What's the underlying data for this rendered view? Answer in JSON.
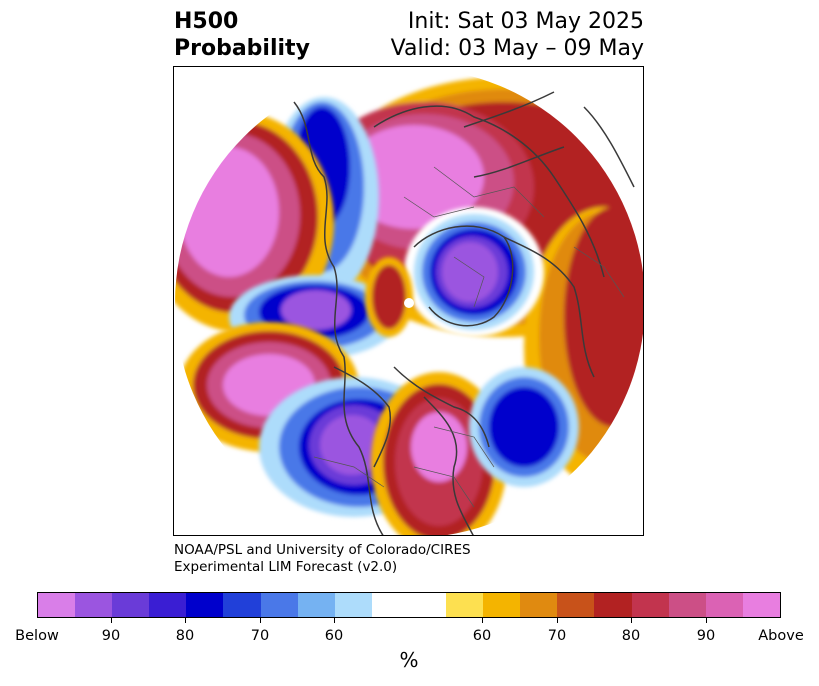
{
  "header": {
    "title_line1": "H500",
    "title_line2": "Probability",
    "init_text": "Init: Sat 03 May 2025",
    "valid_text": "Valid: 03 May – 09 May"
  },
  "credit": {
    "line1": "NOAA/PSL and University of Colorado/CIRES",
    "line2": "Experimental LIM Forecast (v2.0)"
  },
  "colorbar": {
    "unit": "%",
    "colors": [
      "#d97ee8",
      "#9b55e0",
      "#6a3bd8",
      "#3a1ed3",
      "#0000cc",
      "#2140d9",
      "#4a78e8",
      "#75b2f2",
      "#addcfb",
      "#ffffff",
      "#fde050",
      "#f4b400",
      "#e08a10",
      "#c8521a",
      "#b22222",
      "#c2344e",
      "#cc4f86",
      "#db62b4",
      "#e87ee0"
    ],
    "tick_labels": [
      "Below",
      "90",
      "80",
      "70",
      "60",
      "60",
      "70",
      "80",
      "90",
      "Above"
    ]
  }
}
